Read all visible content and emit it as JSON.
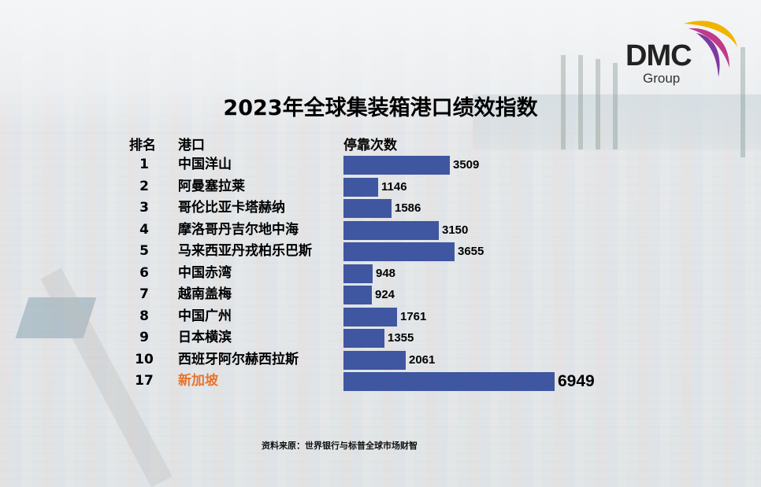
{
  "title": "2023年全球集装箱港口绩效指数",
  "logo": {
    "name": "DMC",
    "sub": "Group"
  },
  "headers": {
    "rank": "排名",
    "port": "港口",
    "value": "停靠次数"
  },
  "source": "资料来原：世界银行与标普全球市场财智",
  "colors": {
    "bar": "#3f56a0",
    "highlight": "#e8732c"
  },
  "chart_data": {
    "type": "bar",
    "orientation": "horizontal",
    "title": "2023年全球集装箱港口绩效指数",
    "xlabel": "停靠次数",
    "ylabel": "港口",
    "categories": [
      "中国洋山",
      "阿曼塞拉莱",
      "哥伦比亚卡塔赫纳",
      "摩洛哥丹吉尔地中海",
      "马来西亚丹戎柏乐巴斯",
      "中国赤湾",
      "越南盖梅",
      "中国广州",
      "日本横滨",
      "西班牙阿尔赫西拉斯",
      "新加坡"
    ],
    "ranks": [
      "1",
      "2",
      "3",
      "4",
      "5",
      "6",
      "7",
      "8",
      "9",
      "10",
      "17"
    ],
    "values": [
      3509,
      1146,
      1586,
      3150,
      3655,
      948,
      924,
      1761,
      1355,
      2061,
      6949
    ],
    "value_labels": [
      "3509",
      "1146",
      "1586",
      "3150",
      "3655",
      "948",
      "924",
      "1761",
      "1355",
      "2061",
      "6949"
    ],
    "highlight_index": 10,
    "xlim": [
      0,
      6949
    ],
    "grid": false
  }
}
